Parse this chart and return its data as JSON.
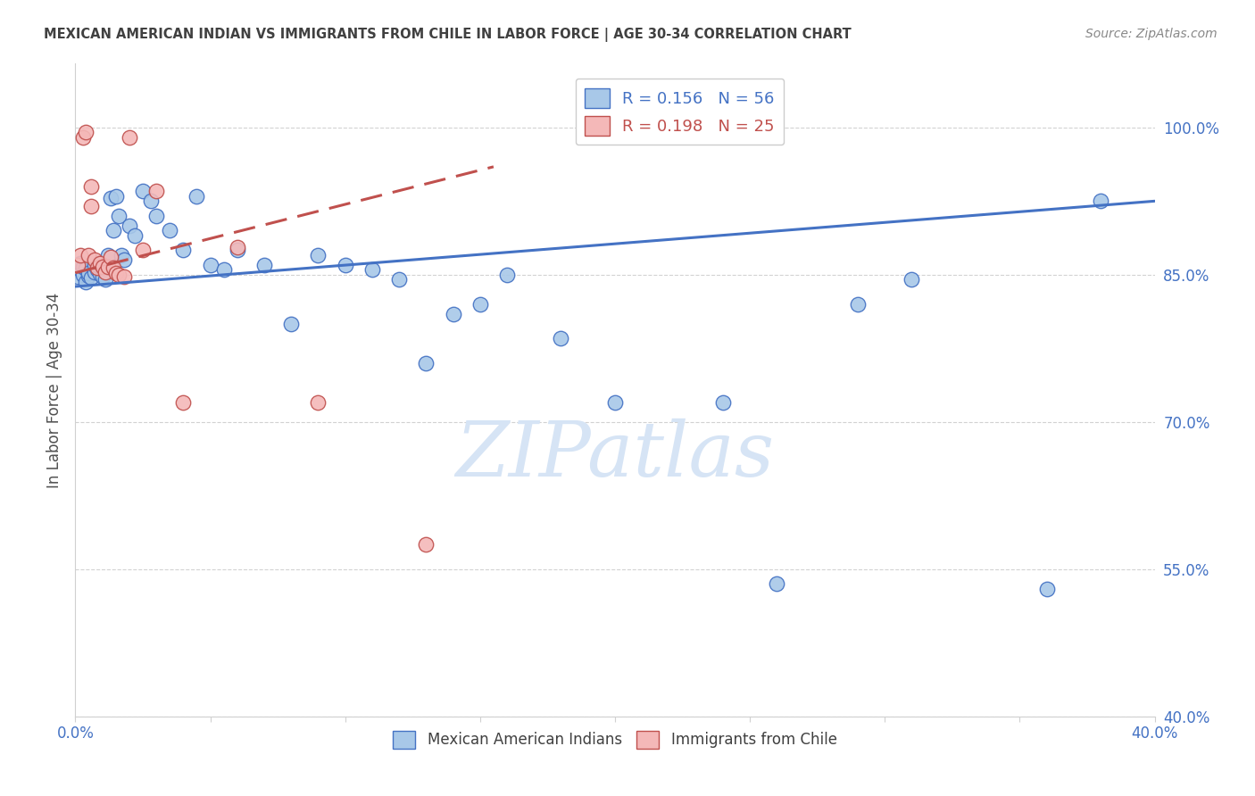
{
  "title": "MEXICAN AMERICAN INDIAN VS IMMIGRANTS FROM CHILE IN LABOR FORCE | AGE 30-34 CORRELATION CHART",
  "source": "Source: ZipAtlas.com",
  "ylabel": "In Labor Force | Age 30-34",
  "xmin": 0.0,
  "xmax": 0.4,
  "ymin": 0.4,
  "ymax": 1.065,
  "yticks": [
    0.4,
    0.55,
    0.7,
    0.85,
    1.0
  ],
  "ytick_labels": [
    "40.0%",
    "55.0%",
    "70.0%",
    "85.0%",
    "100.0%"
  ],
  "xticks": [
    0.0,
    0.05,
    0.1,
    0.15,
    0.2,
    0.25,
    0.3,
    0.35,
    0.4
  ],
  "xtick_labels": [
    "0.0%",
    "",
    "",
    "",
    "",
    "",
    "",
    "",
    "40.0%"
  ],
  "blue_color": "#a8c8e8",
  "pink_color": "#f4b8b8",
  "blue_edge_color": "#4472c4",
  "pink_edge_color": "#c0504d",
  "blue_line_color": "#4472c4",
  "pink_line_color": "#c0504d",
  "axis_color": "#4472c4",
  "grid_color": "#c0c0c0",
  "title_color": "#404040",
  "watermark_color": "#d6e4f5",
  "blue_scatter_x": [
    0.001,
    0.002,
    0.002,
    0.003,
    0.003,
    0.004,
    0.004,
    0.005,
    0.005,
    0.006,
    0.007,
    0.007,
    0.008,
    0.008,
    0.009,
    0.009,
    0.01,
    0.01,
    0.011,
    0.012,
    0.013,
    0.014,
    0.015,
    0.016,
    0.017,
    0.018,
    0.02,
    0.022,
    0.025,
    0.028,
    0.03,
    0.035,
    0.04,
    0.045,
    0.05,
    0.055,
    0.06,
    0.07,
    0.08,
    0.09,
    0.1,
    0.11,
    0.12,
    0.13,
    0.14,
    0.15,
    0.16,
    0.18,
    0.2,
    0.24,
    0.26,
    0.29,
    0.31,
    0.36,
    0.38
  ],
  "blue_scatter_y": [
    0.848,
    0.855,
    0.862,
    0.85,
    0.858,
    0.843,
    0.856,
    0.849,
    0.852,
    0.847,
    0.853,
    0.86,
    0.855,
    0.862,
    0.851,
    0.858,
    0.848,
    0.856,
    0.845,
    0.87,
    0.928,
    0.895,
    0.93,
    0.91,
    0.87,
    0.865,
    0.9,
    0.89,
    0.935,
    0.925,
    0.91,
    0.895,
    0.875,
    0.93,
    0.86,
    0.855,
    0.875,
    0.86,
    0.8,
    0.87,
    0.86,
    0.855,
    0.845,
    0.76,
    0.81,
    0.82,
    0.85,
    0.785,
    0.72,
    0.72,
    0.535,
    0.82,
    0.845,
    0.53,
    0.925
  ],
  "pink_scatter_x": [
    0.001,
    0.002,
    0.003,
    0.004,
    0.005,
    0.006,
    0.006,
    0.007,
    0.008,
    0.009,
    0.01,
    0.011,
    0.012,
    0.013,
    0.014,
    0.015,
    0.016,
    0.018,
    0.02,
    0.025,
    0.03,
    0.04,
    0.06,
    0.09,
    0.13
  ],
  "pink_scatter_y": [
    0.86,
    0.87,
    0.99,
    0.995,
    0.87,
    0.94,
    0.92,
    0.865,
    0.857,
    0.862,
    0.858,
    0.853,
    0.858,
    0.868,
    0.857,
    0.852,
    0.85,
    0.848,
    0.99,
    0.875,
    0.935,
    0.72,
    0.878,
    0.72,
    0.575
  ],
  "blue_trend_x": [
    0.0,
    0.4
  ],
  "blue_trend_y": [
    0.838,
    0.925
  ],
  "pink_trend_x": [
    0.0,
    0.155
  ],
  "pink_trend_y": [
    0.852,
    0.96
  ]
}
